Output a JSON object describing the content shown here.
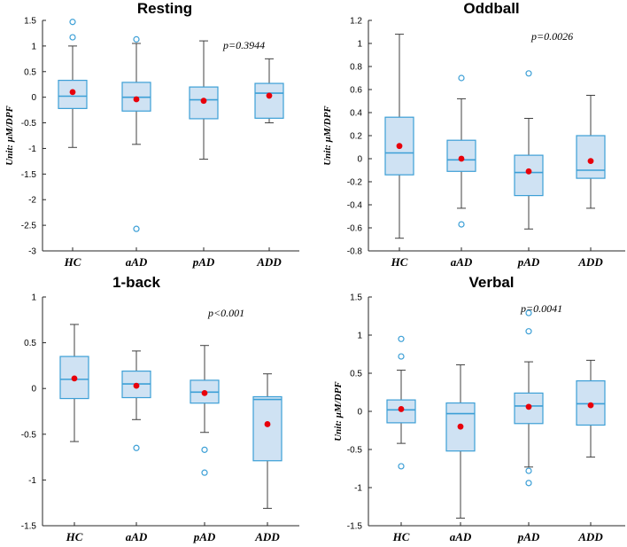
{
  "figure": {
    "y_label": "Unit: μM/DPF"
  },
  "chart_data": [
    {
      "type": "boxplot",
      "title": "Resting",
      "annotation": "p=0.3944",
      "ylabel": "Unit: μM/DPF",
      "ylim": [
        -3,
        1.5
      ],
      "yticks": [
        1.5,
        1,
        0.5,
        0,
        -0.5,
        -1,
        -1.5,
        -2,
        -2.5,
        -3
      ],
      "categories": [
        "HC",
        "aAD",
        "pAD",
        "ADD"
      ],
      "boxes": [
        {
          "whisker_low": -0.98,
          "q1": -0.22,
          "median": 0.02,
          "q3": 0.33,
          "whisker_high": 1.0,
          "mean": 0.1,
          "outliers": [
            1.47,
            1.17
          ]
        },
        {
          "whisker_low": -0.92,
          "q1": -0.27,
          "median": 0.0,
          "q3": 0.29,
          "whisker_high": 1.05,
          "mean": -0.04,
          "outliers": [
            1.13,
            -2.57
          ]
        },
        {
          "whisker_low": -1.21,
          "q1": -0.42,
          "median": -0.05,
          "q3": 0.2,
          "whisker_high": 1.1,
          "mean": -0.07,
          "outliers": []
        },
        {
          "whisker_low": -0.5,
          "q1": -0.41,
          "median": 0.08,
          "q3": 0.27,
          "whisker_high": 0.75,
          "mean": 0.03,
          "outliers": []
        }
      ]
    },
    {
      "type": "boxplot",
      "title": "Oddball",
      "annotation": "p=0.0026",
      "ylabel": "Unit: μM/DPF",
      "ylim": [
        -0.8,
        1.2
      ],
      "yticks": [
        1.2,
        1,
        0.8,
        0.6,
        0.4,
        0.2,
        0,
        -0.2,
        -0.4,
        -0.6,
        -0.8
      ],
      "categories": [
        "HC",
        "aAD",
        "pAD",
        "ADD"
      ],
      "boxes": [
        {
          "whisker_low": -0.69,
          "q1": -0.14,
          "median": 0.05,
          "q3": 0.36,
          "whisker_high": 1.08,
          "mean": 0.11,
          "outliers": []
        },
        {
          "whisker_low": -0.43,
          "q1": -0.11,
          "median": -0.01,
          "q3": 0.16,
          "whisker_high": 0.52,
          "mean": 0.0,
          "outliers": [
            0.7,
            -0.57
          ]
        },
        {
          "whisker_low": -0.61,
          "q1": -0.32,
          "median": -0.12,
          "q3": 0.03,
          "whisker_high": 0.35,
          "mean": -0.11,
          "outliers": [
            0.74
          ]
        },
        {
          "whisker_low": -0.43,
          "q1": -0.17,
          "median": -0.1,
          "q3": 0.2,
          "whisker_high": 0.55,
          "mean": -0.02,
          "outliers": []
        }
      ]
    },
    {
      "type": "boxplot",
      "title": "1-back",
      "annotation": "p<0.001",
      "ylabel": "",
      "ylim": [
        -1.5,
        1
      ],
      "yticks": [
        1,
        0.5,
        0,
        -0.5,
        -1,
        -1.5
      ],
      "categories": [
        "HC",
        "aAD",
        "pAD",
        "ADD"
      ],
      "boxes": [
        {
          "whisker_low": -0.58,
          "q1": -0.11,
          "median": 0.1,
          "q3": 0.35,
          "whisker_high": 0.7,
          "mean": 0.11,
          "outliers": []
        },
        {
          "whisker_low": -0.34,
          "q1": -0.1,
          "median": 0.05,
          "q3": 0.19,
          "whisker_high": 0.41,
          "mean": 0.03,
          "outliers": [
            -0.65
          ]
        },
        {
          "whisker_low": -0.48,
          "q1": -0.16,
          "median": -0.04,
          "q3": 0.09,
          "whisker_high": 0.47,
          "mean": -0.05,
          "outliers": [
            -0.67,
            -0.92
          ]
        },
        {
          "whisker_low": -1.31,
          "q1": -0.79,
          "median": -0.12,
          "q3": -0.09,
          "whisker_high": 0.16,
          "mean": -0.39,
          "outliers": []
        }
      ]
    },
    {
      "type": "boxplot",
      "title": "Verbal",
      "annotation": "p=0.0041",
      "ylabel": "Unit: μM/DPF",
      "ylim": [
        -1.5,
        1.5
      ],
      "yticks": [
        1.5,
        1,
        0.5,
        0,
        -0.5,
        -1,
        -1.5
      ],
      "categories": [
        "HC",
        "aAD",
        "pAD",
        "ADD"
      ],
      "boxes": [
        {
          "whisker_low": -0.42,
          "q1": -0.15,
          "median": 0.02,
          "q3": 0.15,
          "whisker_high": 0.54,
          "mean": 0.03,
          "outliers": [
            0.95,
            0.72,
            -0.72
          ]
        },
        {
          "whisker_low": -1.4,
          "q1": -0.52,
          "median": -0.03,
          "q3": 0.11,
          "whisker_high": 0.61,
          "mean": -0.2,
          "outliers": []
        },
        {
          "whisker_low": -0.73,
          "q1": -0.16,
          "median": 0.07,
          "q3": 0.24,
          "whisker_high": 0.65,
          "mean": 0.06,
          "outliers": [
            1.29,
            1.05,
            -0.78,
            -0.94
          ]
        },
        {
          "whisker_low": -0.6,
          "q1": -0.18,
          "median": 0.1,
          "q3": 0.4,
          "whisker_high": 0.67,
          "mean": 0.08,
          "outliers": []
        }
      ]
    }
  ],
  "colors": {
    "box_fill": "#cfe2f3",
    "box_edge": "#3c9fd6",
    "whisker": "#404040",
    "outlier": "#3c9fd6",
    "mean_marker": "#e8000b",
    "axis": "#262626"
  }
}
